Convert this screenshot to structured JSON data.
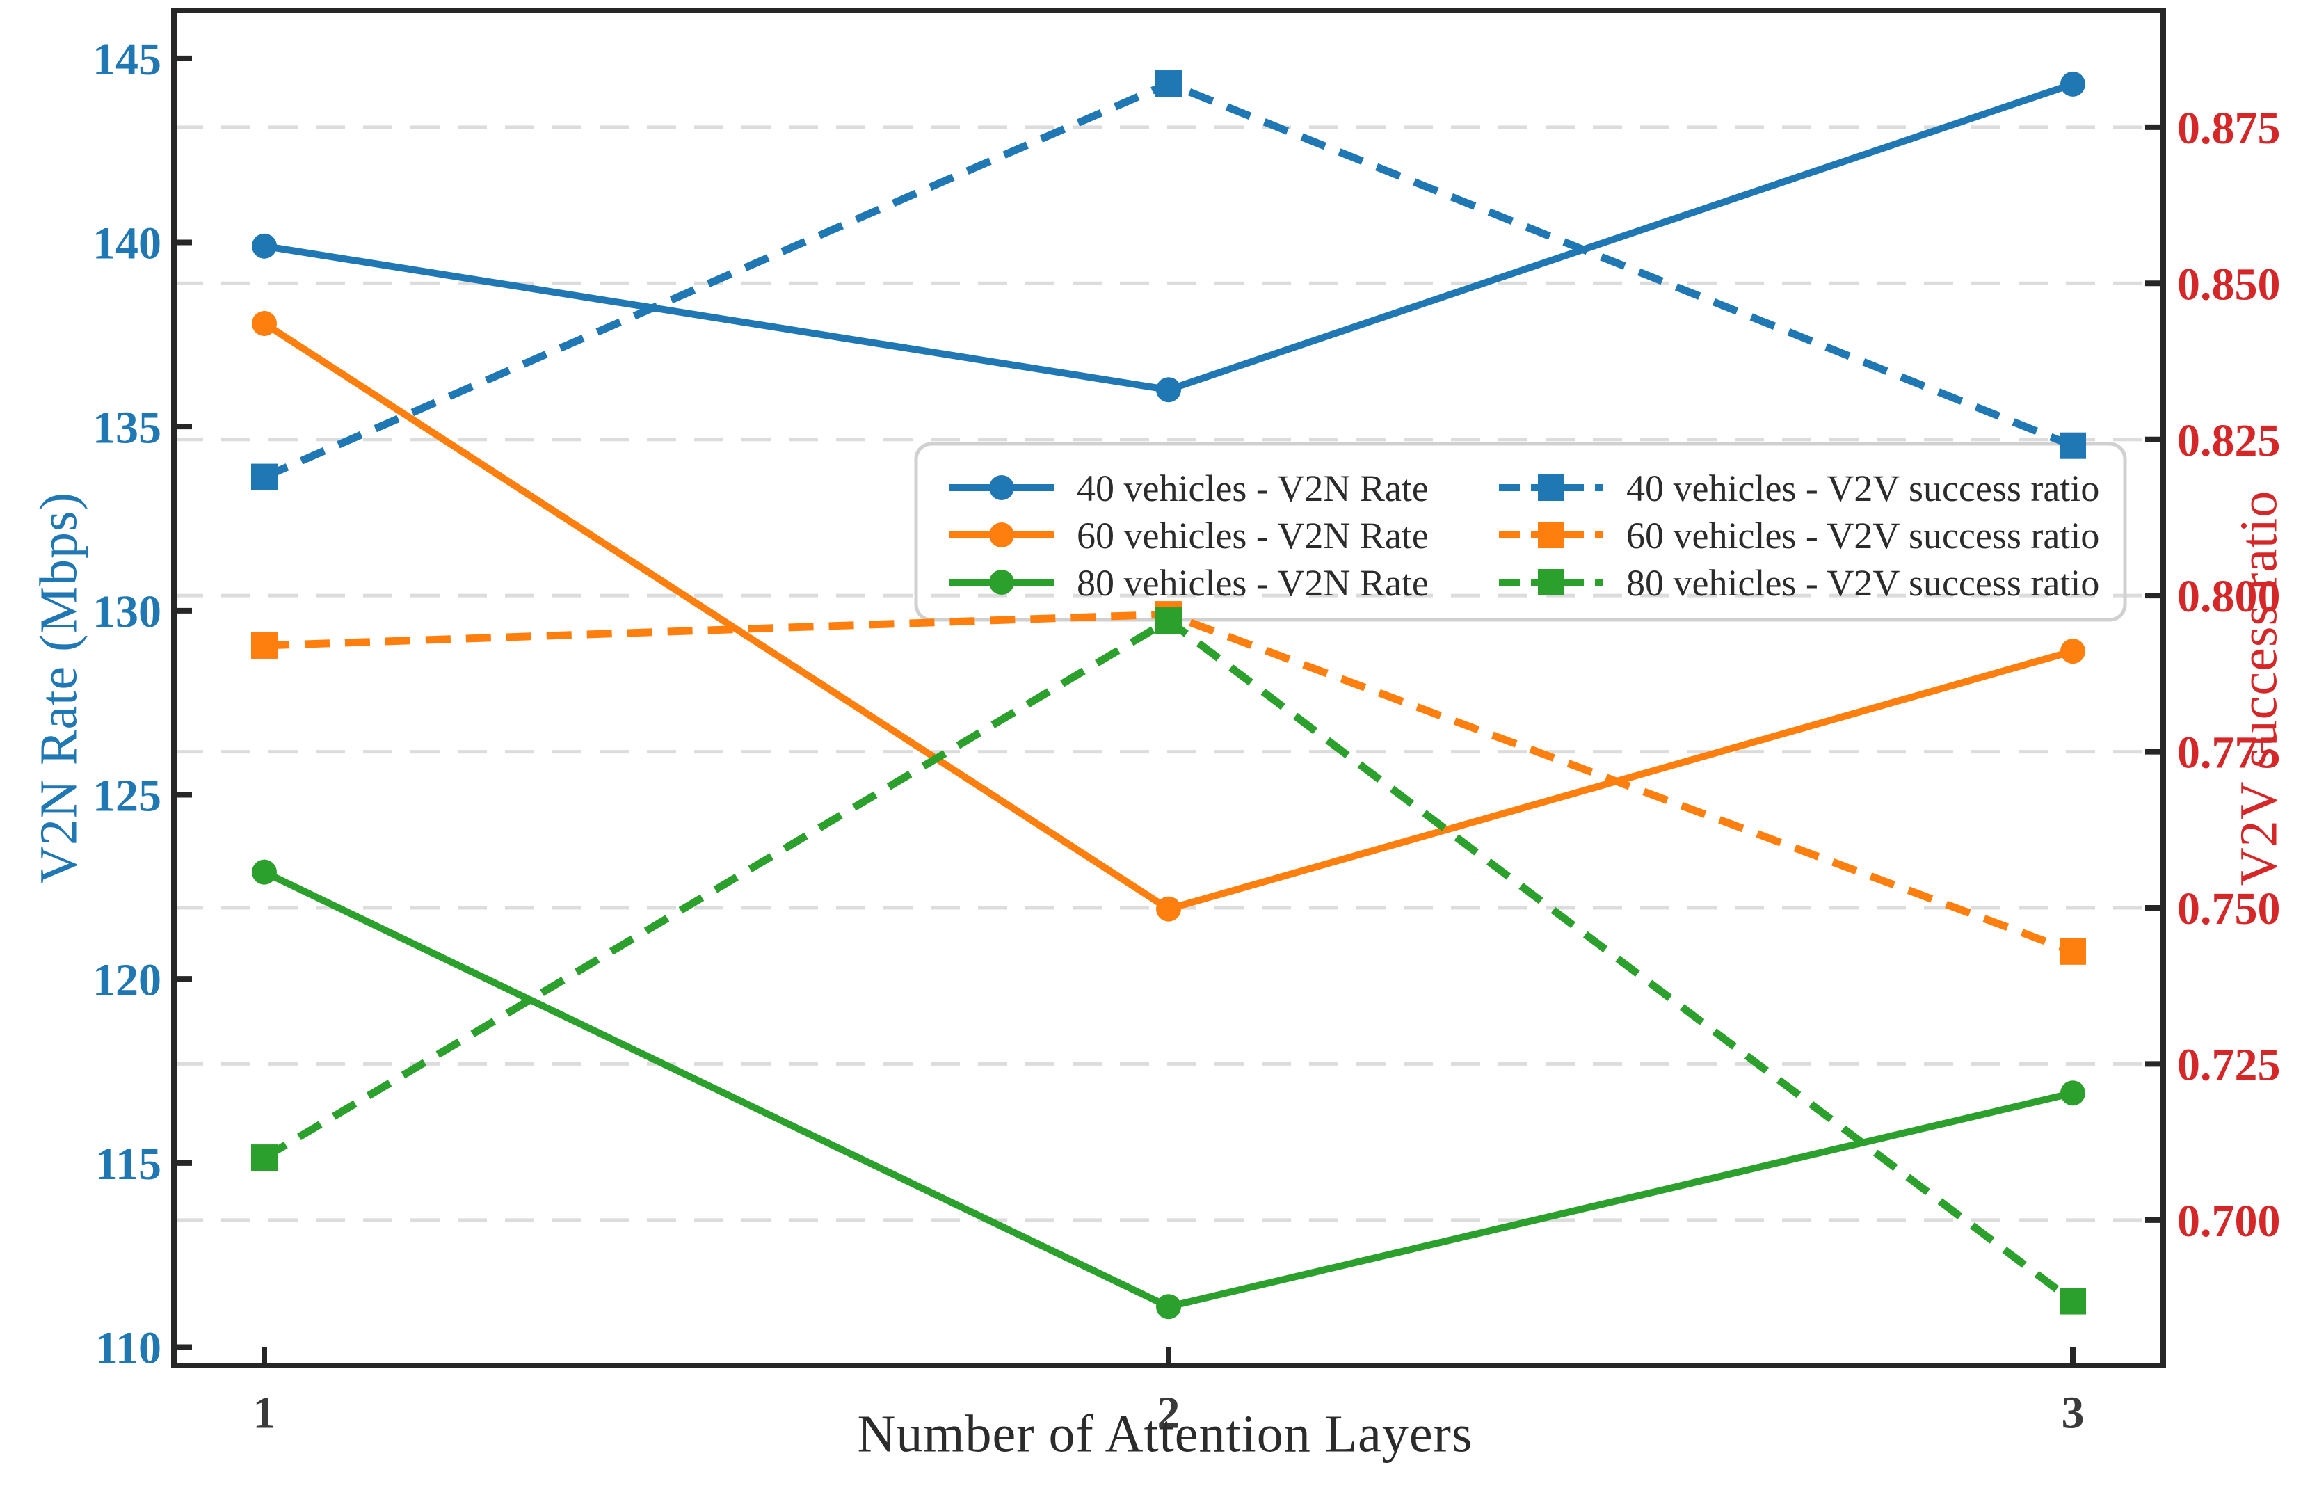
{
  "figure": {
    "background": "#ffffff",
    "spine_color": "#262626",
    "grid_color": "#dcdcdc",
    "tick_text_color": "#3a3a3a"
  },
  "chart_data": {
    "type": "line",
    "title": "",
    "xlabel": "Number of Attention Layers",
    "x": [
      1,
      2,
      3
    ],
    "x_tick_labels": [
      "1",
      "2",
      "3"
    ],
    "xlim": [
      0.9,
      3.1
    ],
    "grid": {
      "show": true,
      "axis": "right",
      "style": "dashed"
    },
    "left_axis": {
      "label": "V2N Rate (Mbps)",
      "color": "#1f77b4",
      "ticks": [
        110,
        115,
        120,
        125,
        130,
        135,
        140,
        145
      ],
      "tick_labels": [
        "110",
        "115",
        "120",
        "125",
        "130",
        "135",
        "140",
        "145"
      ],
      "ylim": [
        109.5,
        146.3
      ]
    },
    "right_axis": {
      "label": "V2V success ratio",
      "color": "#d62728",
      "ticks": [
        0.7,
        0.725,
        0.75,
        0.775,
        0.8,
        0.825,
        0.85,
        0.875
      ],
      "tick_labels": [
        "0.700",
        "0.725",
        "0.750",
        "0.775",
        "0.800",
        "0.825",
        "0.850",
        "0.875"
      ],
      "ylim": [
        0.6767,
        0.8937
      ]
    },
    "series": [
      {
        "name": "40 vehicles - V2N Rate",
        "axis": "left",
        "color": "#1f77b4",
        "line": "solid",
        "marker": "circle",
        "values": [
          139.9,
          136.0,
          144.3
        ]
      },
      {
        "name": "60 vehicles - V2N Rate",
        "axis": "left",
        "color": "#ff7f0e",
        "line": "solid",
        "marker": "circle",
        "values": [
          137.8,
          121.9,
          128.9
        ]
      },
      {
        "name": "80 vehicles - V2N Rate",
        "axis": "left",
        "color": "#2ca02c",
        "line": "solid",
        "marker": "circle",
        "values": [
          122.9,
          111.1,
          116.9
        ]
      },
      {
        "name": "40 vehicles - V2V success ratio",
        "axis": "right",
        "color": "#1f77b4",
        "line": "dashed",
        "marker": "square",
        "values": [
          0.819,
          0.882,
          0.824
        ]
      },
      {
        "name": "60 vehicles - V2V success ratio",
        "axis": "right",
        "color": "#ff7f0e",
        "line": "dashed",
        "marker": "square",
        "values": [
          0.792,
          0.797,
          0.743
        ]
      },
      {
        "name": "80 vehicles - V2V success ratio",
        "axis": "right",
        "color": "#2ca02c",
        "line": "dashed",
        "marker": "square",
        "values": [
          0.71,
          0.796,
          0.687
        ]
      }
    ],
    "legend": {
      "columns": 2,
      "rows": 3,
      "location": "center-right",
      "border_color": "#d0d0d0"
    }
  }
}
